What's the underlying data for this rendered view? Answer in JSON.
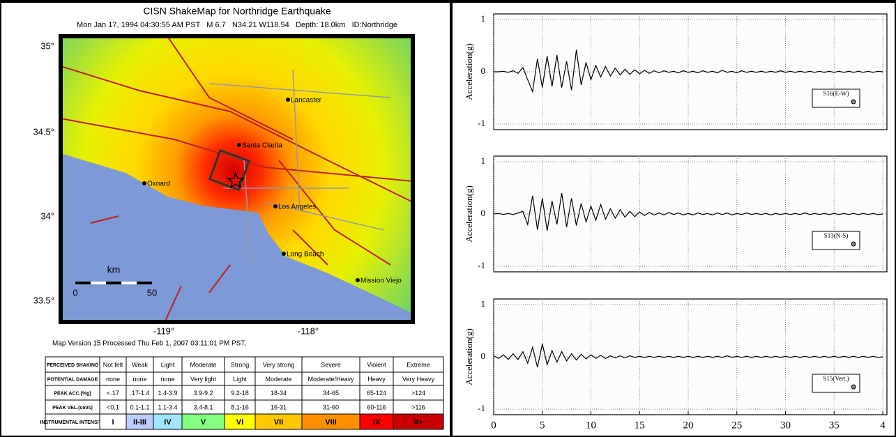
{
  "map": {
    "title": "CISN ShakeMap for Northridge Earthquake",
    "subtitle": "Mon Jan 17, 1994 04:30:55 AM PST   M 6.7   N34.21 W118.54   Depth: 18.0km   ID:Northridge",
    "lat_labels": [
      "35°",
      "34.5°",
      "34°",
      "33.5°"
    ],
    "lon_labels": [
      "-119°",
      "-118°"
    ],
    "cities": [
      "Lancaster",
      "Santa Clarita",
      "Oxnard",
      "Los Angeles",
      "Long Beach",
      "Mission Viejo"
    ],
    "scale": {
      "unit": "km",
      "start": "0",
      "end": "50"
    },
    "footer": "Map Version 15 Processed Thu Feb 1, 2007 03:11:01 PM PST,"
  },
  "legend_table": {
    "rows": [
      [
        "PERCEIVED SHAKING",
        "Not felt",
        "Weak",
        "Light",
        "Moderate",
        "Strong",
        "Very strong",
        "Severe",
        "Violent",
        "Extreme"
      ],
      [
        "POTENTIAL DAMAGE",
        "none",
        "none",
        "none",
        "Very light",
        "Light",
        "Moderate",
        "Moderate/Heavy",
        "Heavy",
        "Very Heavy"
      ],
      [
        "PEAK ACC.(%g)",
        "<.17",
        ".17-1.4",
        "1.4-3.9",
        "3.9-9.2",
        "9.2-18",
        "18-34",
        "34-65",
        "65-124",
        ">124"
      ],
      [
        "PEAK VEL.(cm/s)",
        "<0.1",
        "0.1-1.1",
        "1.1-3.4",
        "3.4-8.1",
        "8.1-16",
        "16-31",
        "31-60",
        "60-116",
        ">116"
      ],
      [
        "INSTRUMENTAL INTENSITY",
        "I",
        "II-III",
        "IV",
        "V",
        "VI",
        "VII",
        "VIII",
        "IX",
        "X+"
      ]
    ]
  },
  "chart_data": [
    {
      "type": "line",
      "ylabel": "Acceleration(g)",
      "xlim": [
        0,
        40
      ],
      "ylim": [
        -1,
        1
      ],
      "yticks": [
        -1,
        0,
        1
      ],
      "grid": true,
      "x": [
        0,
        0.5,
        1,
        1.5,
        2,
        2.5,
        3,
        3.5,
        4,
        4.5,
        5,
        5.5,
        6,
        6.5,
        7,
        7.5,
        8,
        8.5,
        9,
        9.5,
        10,
        10.5,
        11,
        11.5,
        12,
        12.5,
        13,
        13.5,
        14,
        14.5,
        15,
        15.5,
        16,
        16.5,
        17,
        17.5,
        18,
        18.5,
        19,
        19.5,
        20,
        20.5,
        21,
        21.5,
        22,
        22.5,
        23,
        23.5,
        24,
        24.5,
        25,
        25.5,
        26,
        26.5,
        27,
        27.5,
        28,
        28.5,
        29,
        29.5,
        30,
        30.5,
        31,
        31.5,
        32,
        32.5,
        33,
        33.5,
        34,
        34.5,
        35,
        35.5,
        36,
        36.5,
        37,
        37.5,
        38,
        38.5,
        39,
        39.5,
        40
      ],
      "series": [
        {
          "name": "S16(E-W)",
          "color": "#000000",
          "values": [
            0,
            0,
            0.01,
            -0.01,
            0.02,
            -0.03,
            0.08,
            -0.15,
            -0.38,
            0.25,
            -0.3,
            0.3,
            -0.28,
            0.32,
            -0.3,
            0.2,
            -0.35,
            0.42,
            -0.25,
            0.18,
            -0.15,
            0.12,
            -0.1,
            0.1,
            -0.08,
            0.07,
            -0.06,
            0.05,
            -0.05,
            0.04,
            -0.04,
            0.03,
            -0.03,
            0.02,
            -0.02,
            0.02,
            -0.01,
            0.01,
            -0.02,
            0.02,
            -0.01,
            0.01,
            -0.02,
            0.02,
            -0.01,
            0.01,
            -0.02,
            0.03,
            -0.01,
            0.01,
            -0.02,
            0.02,
            -0.01,
            0.01,
            -0.01,
            0.01,
            -0.01,
            0.01,
            -0.01,
            0.02,
            -0.01,
            0.01,
            -0.01,
            0.01,
            -0.01,
            0.01,
            -0.01,
            0.01,
            -0.01,
            0.01,
            -0.01,
            0.01,
            -0.01,
            0.01,
            -0.01,
            0.01,
            -0.01,
            0.01,
            -0.01,
            0.01,
            0
          ]
        }
      ]
    },
    {
      "type": "line",
      "ylabel": "Acceleration(g)",
      "xlim": [
        0,
        40
      ],
      "ylim": [
        -1,
        1
      ],
      "yticks": [
        -1,
        0,
        1
      ],
      "grid": true,
      "x": [
        0,
        0.5,
        1,
        1.5,
        2,
        2.5,
        3,
        3.5,
        4,
        4.5,
        5,
        5.5,
        6,
        6.5,
        7,
        7.5,
        8,
        8.5,
        9,
        9.5,
        10,
        10.5,
        11,
        11.5,
        12,
        12.5,
        13,
        13.5,
        14,
        14.5,
        15,
        15.5,
        16,
        16.5,
        17,
        17.5,
        18,
        18.5,
        19,
        19.5,
        20,
        20.5,
        21,
        21.5,
        22,
        22.5,
        23,
        23.5,
        24,
        24.5,
        25,
        25.5,
        26,
        26.5,
        27,
        27.5,
        28,
        28.5,
        29,
        29.5,
        30,
        30.5,
        31,
        31.5,
        32,
        32.5,
        33,
        33.5,
        34,
        34.5,
        35,
        35.5,
        36,
        36.5,
        37,
        37.5,
        38,
        38.5,
        39,
        39.5,
        40
      ],
      "series": [
        {
          "name": "S13(N-S)",
          "color": "#000000",
          "values": [
            0,
            0.01,
            -0.01,
            0.01,
            -0.01,
            0.02,
            0.05,
            -0.2,
            0.35,
            -0.3,
            0.3,
            -0.32,
            0.25,
            -0.2,
            0.4,
            -0.25,
            0.3,
            -0.22,
            0.2,
            -0.15,
            0.15,
            -0.12,
            0.18,
            -0.1,
            0.1,
            -0.08,
            0.08,
            -0.06,
            0.05,
            -0.05,
            0.04,
            -0.03,
            0.03,
            -0.02,
            0.02,
            -0.02,
            0.03,
            -0.01,
            0.02,
            -0.02,
            0.01,
            -0.02,
            0.02,
            -0.01,
            0.01,
            -0.02,
            0.02,
            -0.01,
            0.02,
            -0.02,
            0.01,
            -0.01,
            0.02,
            -0.01,
            0.01,
            -0.01,
            0.01,
            -0.02,
            0.01,
            -0.01,
            0.01,
            -0.01,
            0.01,
            -0.01,
            0.02,
            -0.01,
            0.01,
            -0.01,
            0.01,
            -0.01,
            0.01,
            -0.01,
            0.01,
            -0.01,
            0.01,
            -0.01,
            0.01,
            -0.01,
            0.01,
            -0.01,
            0
          ]
        }
      ]
    },
    {
      "type": "line",
      "ylabel": "Acceleration(g)",
      "xlim": [
        0,
        40
      ],
      "ylim": [
        -1,
        1
      ],
      "yticks": [
        -1,
        0,
        1
      ],
      "grid": true,
      "xticks": [
        0,
        5,
        10,
        15,
        20,
        25,
        30,
        35,
        {
          "value": 40,
          "label": "4"
        }
      ],
      "x": [
        0,
        0.5,
        1,
        1.5,
        2,
        2.5,
        3,
        3.5,
        4,
        4.5,
        5,
        5.5,
        6,
        6.5,
        7,
        7.5,
        8,
        8.5,
        9,
        9.5,
        10,
        10.5,
        11,
        11.5,
        12,
        12.5,
        13,
        13.5,
        14,
        14.5,
        15,
        15.5,
        16,
        16.5,
        17,
        17.5,
        18,
        18.5,
        19,
        19.5,
        20,
        20.5,
        21,
        21.5,
        22,
        22.5,
        23,
        23.5,
        24,
        24.5,
        25,
        25.5,
        26,
        26.5,
        27,
        27.5,
        28,
        28.5,
        29,
        29.5,
        30,
        30.5,
        31,
        31.5,
        32,
        32.5,
        33,
        33.5,
        34,
        34.5,
        35,
        35.5,
        36,
        36.5,
        37,
        37.5,
        38,
        38.5,
        39,
        39.5,
        40
      ],
      "series": [
        {
          "name": "S15(Vert.)",
          "color": "#000000",
          "values": [
            0.02,
            -0.03,
            0.04,
            -0.05,
            0.06,
            -0.05,
            0.1,
            -0.12,
            0.18,
            -0.2,
            0.25,
            -0.15,
            0.12,
            -0.1,
            0.1,
            -0.08,
            0.06,
            -0.06,
            0.05,
            -0.04,
            0.04,
            -0.03,
            0.03,
            -0.03,
            0.02,
            -0.02,
            0.02,
            -0.02,
            0.02,
            -0.01,
            0.01,
            -0.01,
            0.01,
            -0.01,
            0.01,
            -0.01,
            0.01,
            -0.01,
            0.01,
            -0.01,
            0.01,
            -0.01,
            0.01,
            -0.01,
            0.01,
            -0.01,
            0.01,
            -0.01,
            0.02,
            -0.01,
            0.01,
            -0.01,
            0.01,
            -0.01,
            0.01,
            -0.01,
            0.01,
            -0.01,
            0.01,
            -0.01,
            0.01,
            -0.01,
            0.01,
            -0.01,
            0.01,
            -0.01,
            0.01,
            -0.01,
            0.01,
            -0.01,
            0.01,
            -0.01,
            0.01,
            -0.01,
            0.01,
            -0.01,
            0.01,
            -0.01,
            0.01,
            -0.01,
            0
          ]
        }
      ]
    }
  ]
}
